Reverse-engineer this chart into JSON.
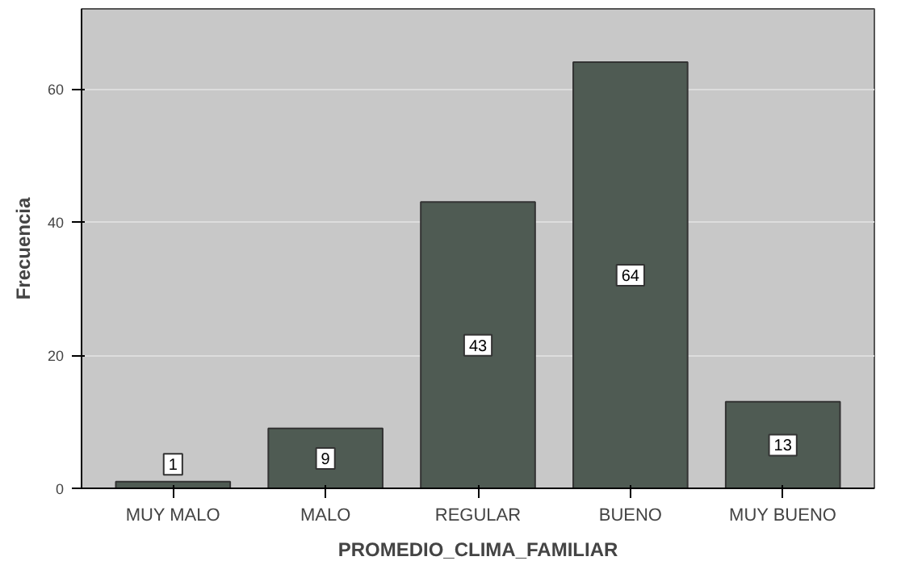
{
  "chart_data": {
    "type": "bar",
    "xlabel": "PROMEDIO_CLIMA_FAMILIAR",
    "ylabel": "Frecuencia",
    "categories": [
      "MUY MALO",
      "MALO",
      "REGULAR",
      "BUENO",
      "MUY BUENO"
    ],
    "values": [
      1,
      9,
      43,
      64,
      13
    ],
    "color": "#4f5b53",
    "ylim": [
      0,
      72
    ],
    "yticks": [
      0,
      20,
      40,
      60
    ],
    "grid": "y",
    "data_labels": true
  }
}
